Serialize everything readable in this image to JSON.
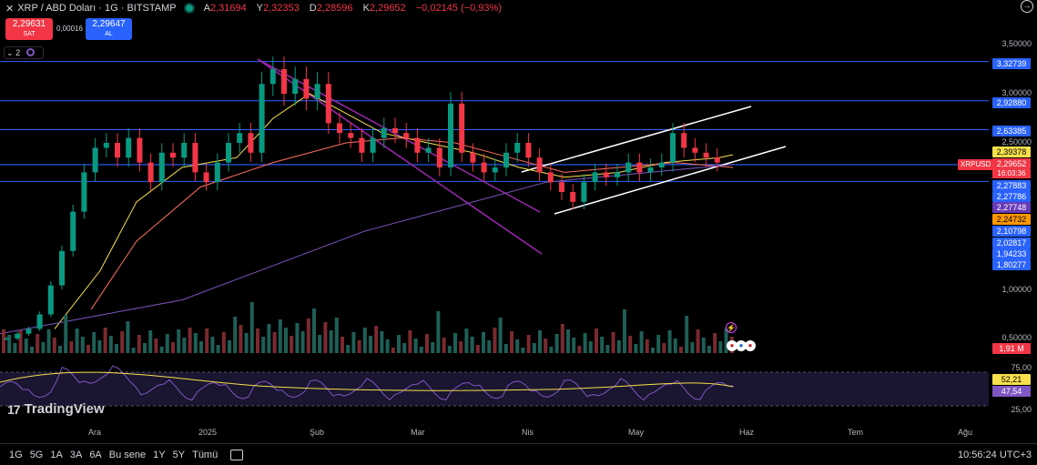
{
  "header": {
    "symbol": "XRP / ABD Doları · 1G · BITSTAMP",
    "ohlc": {
      "o_label": "A",
      "o_value": "2,31694",
      "h_label": "Y",
      "h_value": "2,32353",
      "l_label": "D",
      "l_value": "2,28596",
      "c_label": "K",
      "c_value": "2,29652",
      "change": "−0,02145 (−0,93%)"
    },
    "close_icon": "close-icon",
    "menu_icon": "arrow-icon"
  },
  "trade": {
    "sell_price": "2,29631",
    "sell_label": "SAT",
    "spread": "0,00016",
    "buy_price": "2,29647",
    "buy_label": "AL"
  },
  "indicator_control": {
    "count": "2"
  },
  "price_axis": {
    "ticks": [
      "3,50000",
      "3,00000",
      "2,50000",
      "1,00000",
      "0,50000"
    ]
  },
  "price_labels": [
    {
      "value": "3,32739",
      "color": "#2962ff"
    },
    {
      "value": "2,92880",
      "color": "#2962ff"
    },
    {
      "value": "2,63385",
      "color": "#2962ff"
    },
    {
      "value": "2,39378",
      "color": "#f7e04c"
    },
    {
      "value": "2,29652",
      "color": "#f23645"
    },
    {
      "value": "2,27883",
      "color": "#2962ff"
    },
    {
      "value": "2,27786",
      "color": "#2962ff"
    },
    {
      "value": "2,27748",
      "color": "#673ab7"
    },
    {
      "value": "2,24732",
      "color": "#ff9800"
    },
    {
      "value": "2,10798",
      "color": "#2962ff"
    },
    {
      "value": "2,02817",
      "color": "#2962ff"
    },
    {
      "value": "1,94233",
      "color": "#2962ff"
    },
    {
      "value": "1,80277",
      "color": "#2962ff"
    }
  ],
  "symbol_tag": "XRPUSD",
  "countdown": "16:03:36",
  "volume_label": "1,91 M",
  "rsi": {
    "ticks": [
      "75,00",
      "25,00"
    ],
    "values": [
      "52,21",
      "47,54"
    ]
  },
  "x_axis": [
    "Ara",
    "2025",
    "Şub",
    "Mar",
    "Nis",
    "May",
    "Haz",
    "Tem",
    "Ağu"
  ],
  "bottom": {
    "timeframes": [
      "1G",
      "5G",
      "1A",
      "3A",
      "6A",
      "Bu sene",
      "1Y",
      "5Y",
      "Tümü"
    ],
    "time": "10:56:24 UTC+3"
  },
  "logo": "TradingView",
  "colors": {
    "up": "#089981",
    "down": "#f23645",
    "hline": "#2962ff",
    "channel": "#ffffff",
    "downtrend": "#9c27b0",
    "ma_fast": "#ffa726",
    "ma_slow": "#f7e04c",
    "rsi_line": "#7e57c2"
  },
  "chart_data": {
    "type": "candlestick",
    "interval": "1G",
    "x_axis_months": [
      "Ara",
      "2025",
      "Şub",
      "Mar",
      "Nis",
      "May",
      "Haz",
      "Tem",
      "Ağu"
    ],
    "y_ticks": [
      3.5,
      3.0,
      2.5,
      1.0,
      0.5
    ],
    "horizontal_lines": [
      3.32739,
      2.9288,
      2.63385,
      2.27883,
      2.27786,
      2.10798
    ],
    "last_price": 2.29652,
    "candles_approx_close": [
      0.5,
      0.55,
      0.6,
      0.75,
      1.05,
      1.4,
      1.8,
      2.2,
      2.45,
      2.5,
      2.35,
      2.55,
      2.3,
      2.1,
      2.4,
      2.35,
      2.5,
      2.2,
      2.1,
      2.3,
      2.5,
      2.6,
      2.4,
      3.1,
      3.25,
      3.0,
      3.15,
      2.95,
      3.1,
      2.7,
      2.6,
      2.55,
      2.4,
      2.55,
      2.65,
      2.6,
      2.55,
      2.4,
      2.45,
      2.25,
      2.9,
      2.4,
      2.3,
      2.2,
      2.25,
      2.4,
      2.5,
      2.35,
      2.2,
      2.1,
      2.0,
      1.9,
      2.1,
      2.2,
      2.15,
      2.2,
      2.3,
      2.2,
      2.25,
      2.3,
      2.6,
      2.45,
      2.4,
      2.35,
      2.3
    ]
  }
}
